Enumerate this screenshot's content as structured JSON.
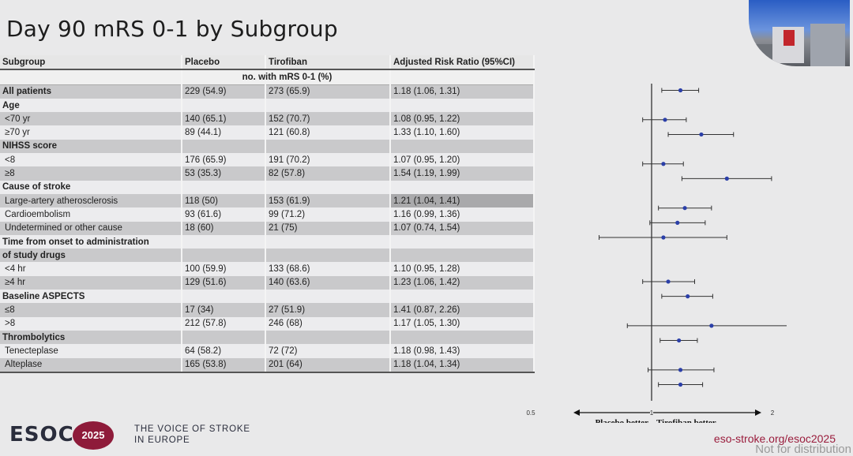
{
  "slide": {
    "title": "Day 90 mRS 0-1 by Subgroup",
    "footer": {
      "logo": "ESOC",
      "badge": "2025",
      "tagline_line1": "THE VOICE OF STROKE",
      "tagline_line2": "IN EUROPE",
      "url": "eso-stroke.org/esoc2025",
      "notice": "Not for distribution"
    }
  },
  "table": {
    "headers": [
      "Subgroup",
      "Placebo",
      "Tirofiban",
      "Adjusted Risk Ratio (95%CI)"
    ],
    "units": "no. with mRS 0-1 (%)",
    "rows": [
      {
        "label": "All patients",
        "placebo": "229 (54.9)",
        "tirofiban": "273 (65.9)",
        "rr": "1.18 (1.06, 1.31)",
        "group": true
      },
      {
        "label": "Age",
        "placebo": "",
        "tirofiban": "",
        "rr": "",
        "group": true
      },
      {
        "label": "<70 yr",
        "placebo": "140 (65.1)",
        "tirofiban": "152 (70.7)",
        "rr": "1.08 (0.95, 1.22)"
      },
      {
        "label": "≥70 yr",
        "placebo": "89 (44.1)",
        "tirofiban": "121 (60.8)",
        "rr": "1.33 (1.10, 1.60)"
      },
      {
        "label": "NIHSS score",
        "placebo": "",
        "tirofiban": "",
        "rr": "",
        "group": true
      },
      {
        "label": "<8",
        "placebo": "176 (65.9)",
        "tirofiban": "191 (70.2)",
        "rr": "1.07 (0.95, 1.20)"
      },
      {
        "label": "≥8",
        "placebo": "53 (35.3)",
        "tirofiban": "82 (57.8)",
        "rr": "1.54 (1.19, 1.99)"
      },
      {
        "label": "Cause of stroke",
        "placebo": "",
        "tirofiban": "",
        "rr": "",
        "group": true
      },
      {
        "label": "Large-artery atherosclerosis",
        "placebo": "118 (50)",
        "tirofiban": "153 (61.9)",
        "rr": "1.21 (1.04, 1.41)",
        "highlight": true
      },
      {
        "label": "Cardioembolism",
        "placebo": "93 (61.6)",
        "tirofiban": "99 (71.2)",
        "rr": "1.16 (0.99, 1.36)"
      },
      {
        "label": "Undetermined or other cause",
        "placebo": "18 (60)",
        "tirofiban": "21 (75)",
        "rr": "1.07 (0.74, 1.54)"
      },
      {
        "label": "Time from onset to administration",
        "placebo": "",
        "tirofiban": "",
        "rr": "",
        "group": true
      },
      {
        "label": "of study drugs",
        "placebo": "",
        "tirofiban": "",
        "rr": "",
        "group": true
      },
      {
        "label": "<4 hr",
        "placebo": "100 (59.9)",
        "tirofiban": "133 (68.6)",
        "rr": "1.10 (0.95, 1.28)"
      },
      {
        "label": "≥4 hr",
        "placebo": "129 (51.6)",
        "tirofiban": "140 (63.6)",
        "rr": "1.23 (1.06, 1.42)"
      },
      {
        "label": "Baseline ASPECTS",
        "placebo": "",
        "tirofiban": "",
        "rr": "",
        "group": true
      },
      {
        "label": "≤8",
        "placebo": "17 (34)",
        "tirofiban": "27 (51.9)",
        "rr": "1.41 (0.87, 2.26)"
      },
      {
        "label": ">8",
        "placebo": "212 (57.8)",
        "tirofiban": "246 (68)",
        "rr": "1.17 (1.05, 1.30)"
      },
      {
        "label": "Thrombolytics",
        "placebo": "",
        "tirofiban": "",
        "rr": "",
        "group": true
      },
      {
        "label": "Tenecteplase",
        "placebo": "64 (58.2)",
        "tirofiban": "72 (72)",
        "rr": "1.18 (0.98, 1.43)"
      },
      {
        "label": "Alteplase",
        "placebo": "165 (53.8)",
        "tirofiban": "201 (64)",
        "rr": "1.18 (1.04, 1.34)"
      }
    ]
  },
  "chart_data": {
    "type": "forest",
    "xscale": "log",
    "xlim": [
      0.5,
      2
    ],
    "xticks": [
      "0.5",
      "1",
      "2"
    ],
    "reference_line": 1,
    "left_label": "Placebo better",
    "right_label": "Tirofiban better",
    "colors": {
      "point": "#2b3fa8",
      "line": "#333333"
    },
    "points": [
      {
        "row": 0,
        "est": 1.18,
        "lo": 1.06,
        "hi": 1.31
      },
      {
        "row": 2,
        "est": 1.08,
        "lo": 0.95,
        "hi": 1.22
      },
      {
        "row": 3,
        "est": 1.33,
        "lo": 1.1,
        "hi": 1.6
      },
      {
        "row": 5,
        "est": 1.07,
        "lo": 0.95,
        "hi": 1.2
      },
      {
        "row": 6,
        "est": 1.54,
        "lo": 1.19,
        "hi": 1.99
      },
      {
        "row": 8,
        "est": 1.21,
        "lo": 1.04,
        "hi": 1.41
      },
      {
        "row": 9,
        "est": 1.16,
        "lo": 0.99,
        "hi": 1.36
      },
      {
        "row": 10,
        "est": 1.07,
        "lo": 0.74,
        "hi": 1.54
      },
      {
        "row": 13,
        "est": 1.1,
        "lo": 0.95,
        "hi": 1.28
      },
      {
        "row": 14,
        "est": 1.23,
        "lo": 1.06,
        "hi": 1.42
      },
      {
        "row": 16,
        "est": 1.41,
        "lo": 0.87,
        "hi": 2.26
      },
      {
        "row": 17,
        "est": 1.17,
        "lo": 1.05,
        "hi": 1.3
      },
      {
        "row": 19,
        "est": 1.18,
        "lo": 0.98,
        "hi": 1.43
      },
      {
        "row": 20,
        "est": 1.18,
        "lo": 1.04,
        "hi": 1.34
      }
    ]
  }
}
